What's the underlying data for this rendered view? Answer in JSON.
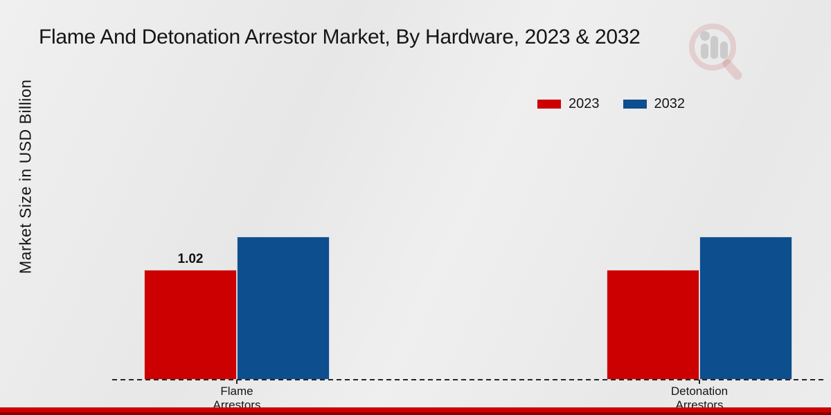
{
  "title": "Flame And Detonation Arrestor Market, By Hardware, 2023 & 2032",
  "y_axis_label": "Market Size in USD Billion",
  "legend": [
    {
      "label": "2023",
      "color": "#cc0000"
    },
    {
      "label": "2032",
      "color": "#0d4e8e"
    }
  ],
  "colors": {
    "series_2023": "#cc0000",
    "series_2032": "#0d4e8e",
    "footer_band": "#cc0000",
    "footer_band_dark": "#8e0000",
    "background": "#eaeaea",
    "text": "#151515",
    "baseline": "#242424"
  },
  "watermark_icon": "magnifier-bar-chart-logo",
  "chart_data": {
    "type": "bar",
    "categories": [
      "Flame Arrestors",
      "Detonation Arrestors"
    ],
    "series": [
      {
        "name": "2023",
        "color": "#cc0000",
        "values": [
          1.02,
          1.02
        ]
      },
      {
        "name": "2032",
        "color": "#0d4e8e",
        "values": [
          1.33,
          1.33
        ]
      }
    ],
    "data_labels": [
      {
        "series": "2023",
        "category_index": 0,
        "text": "1.02"
      }
    ],
    "title": "Flame And Detonation Arrestor Market, By Hardware, 2023 & 2032",
    "xlabel": "",
    "ylabel": "Market Size in USD Billion",
    "y_axis_ticks_visible": false,
    "grid": false,
    "baseline_style": "dashed",
    "legend_position": "top-right"
  }
}
